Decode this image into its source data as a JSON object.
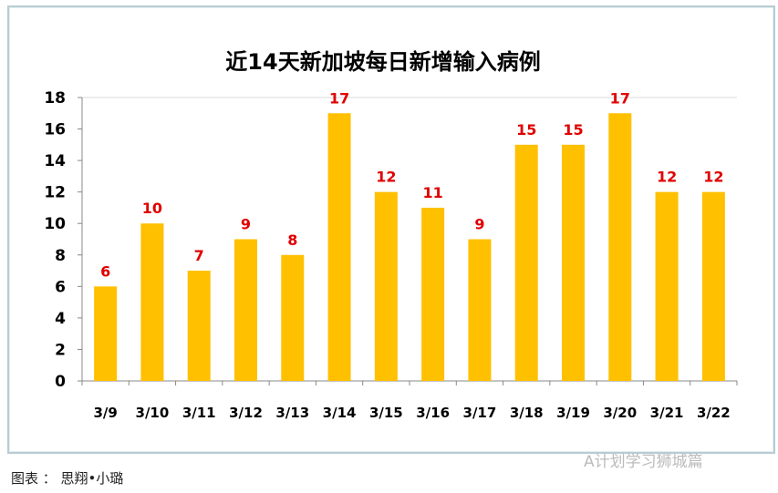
{
  "chart_data": {
    "type": "bar",
    "title": "近14天新加坡每日新增输入病例",
    "categories": [
      "3/9",
      "3/10",
      "3/11",
      "3/12",
      "3/13",
      "3/14",
      "3/15",
      "3/16",
      "3/17",
      "3/18",
      "3/19",
      "3/20",
      "3/21",
      "3/22"
    ],
    "values": [
      6,
      10,
      7,
      9,
      8,
      17,
      12,
      11,
      9,
      15,
      15,
      17,
      12,
      12
    ],
    "ylim": [
      0,
      18
    ],
    "yticks": [
      0,
      2,
      4,
      6,
      8,
      10,
      12,
      14,
      16,
      18
    ],
    "grid": false,
    "legend": "none",
    "bar_color": "#ffc000",
    "label_color": "#e00000",
    "xlabel": "",
    "ylabel": ""
  },
  "caption": "图表 ： 思翔•小璐",
  "watermark": "A计划学习狮城篇"
}
